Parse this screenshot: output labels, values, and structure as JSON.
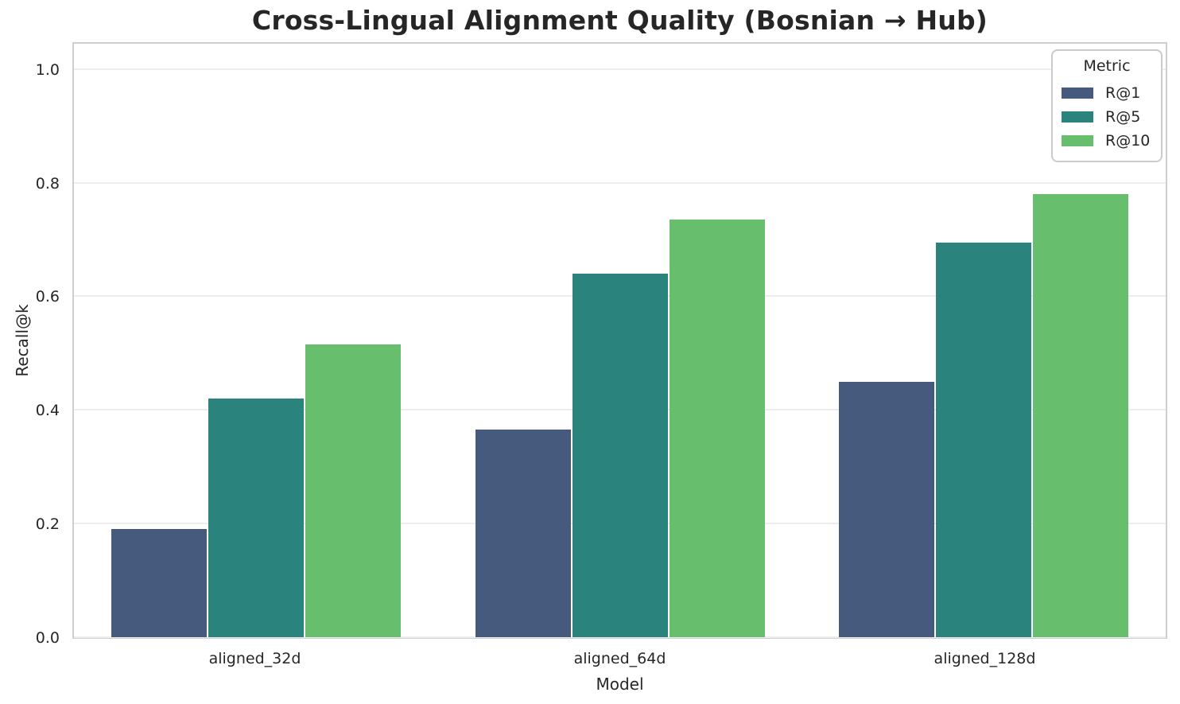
{
  "figure": {
    "title": "Cross-Lingual Alignment Quality (Bosnian → Hub)"
  },
  "legend": {
    "title": "Metric"
  },
  "chart_data": {
    "type": "bar",
    "title": "Cross-Lingual Alignment Quality (Bosnian → Hub)",
    "xlabel": "Model",
    "ylabel": "Recall@k",
    "categories": [
      "aligned_32d",
      "aligned_64d",
      "aligned_128d"
    ],
    "series": [
      {
        "name": "R@1",
        "color": "#455A7C",
        "values": [
          0.19,
          0.365,
          0.45
        ]
      },
      {
        "name": "R@5",
        "color": "#2B837E",
        "values": [
          0.42,
          0.64,
          0.695
        ]
      },
      {
        "name": "R@10",
        "color": "#67BE6D",
        "values": [
          0.515,
          0.735,
          0.78
        ]
      }
    ],
    "ylim": [
      0,
      1.05
    ],
    "yticks": [
      0.0,
      0.2,
      0.4,
      0.6,
      0.8,
      1.0
    ],
    "ytick_labels": [
      "0.0",
      "0.2",
      "0.4",
      "0.6",
      "0.8",
      "1.0"
    ],
    "grid": true,
    "grid_axis": "y",
    "legend_position": "upper right",
    "legend_title": "Metric"
  }
}
